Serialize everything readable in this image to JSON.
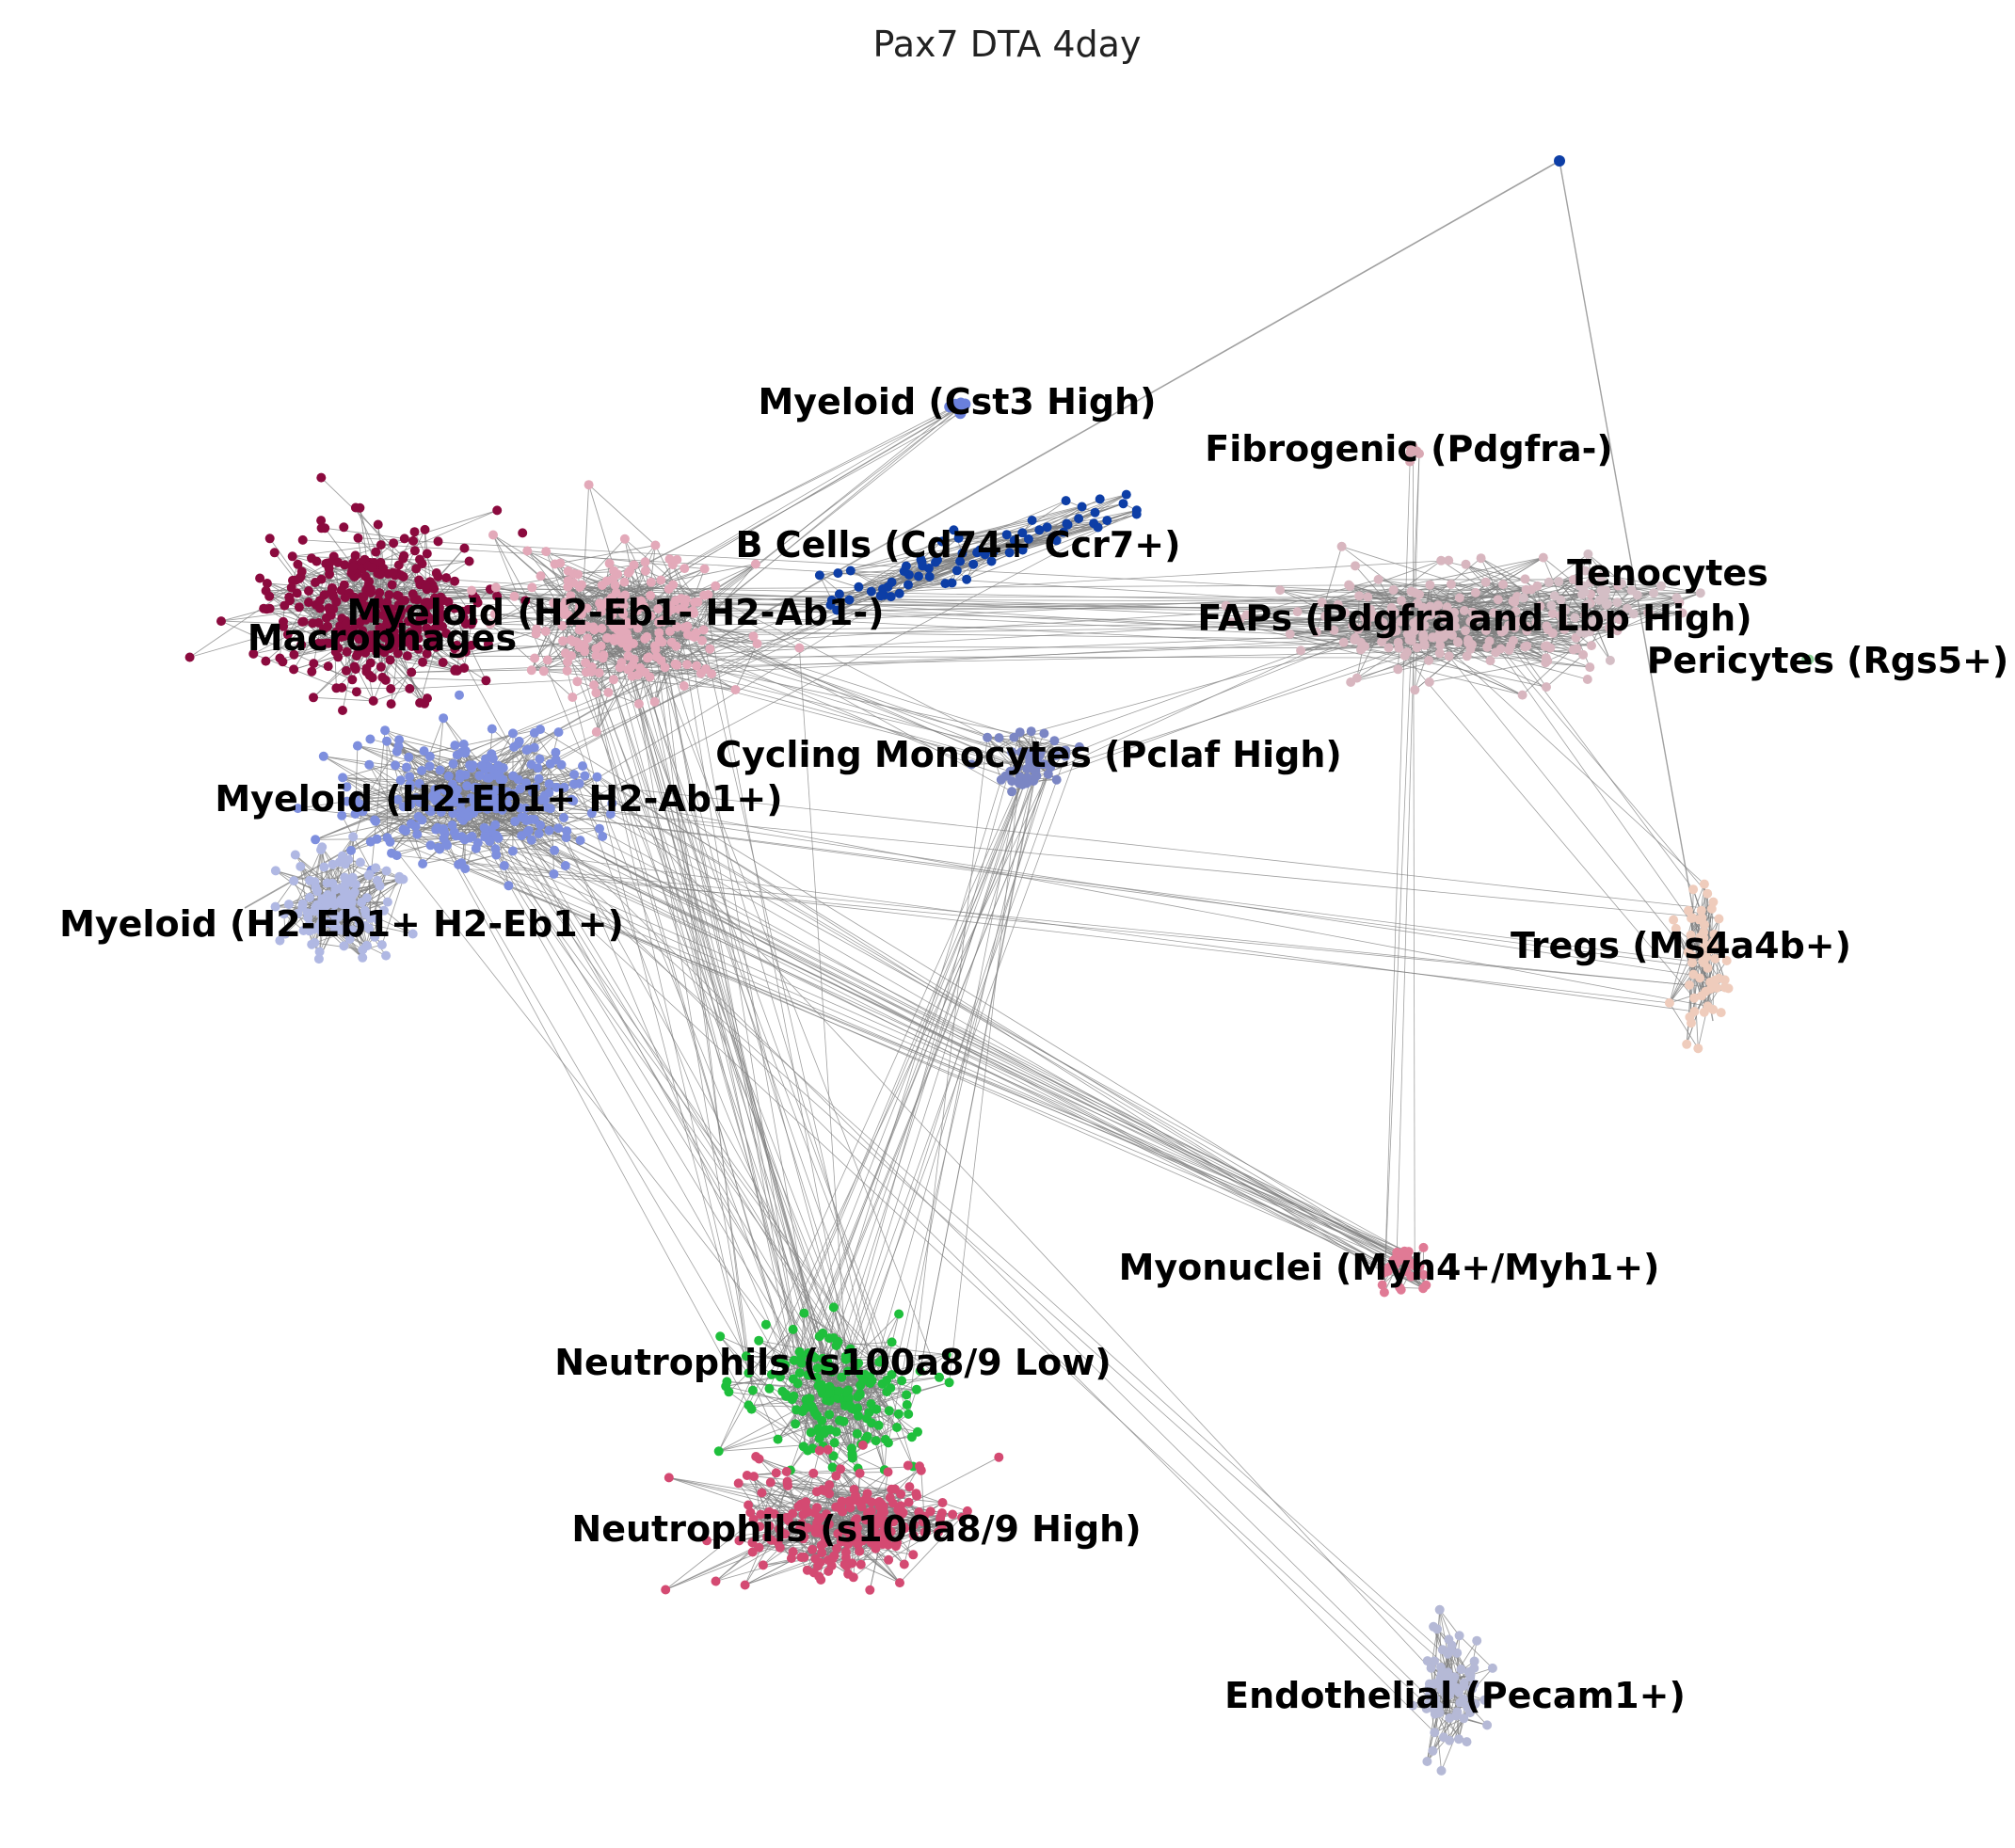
{
  "title": "Pax7 DTA 4day",
  "clusters": [
    {
      "key": "macrophages",
      "label": "Macrophages",
      "color": "#8b0a3e"
    },
    {
      "key": "myeloid_h2neg",
      "label": "Myeloid (H2-Eb1- H2-Ab1-)",
      "color": "#e3a9b9"
    },
    {
      "key": "myeloid_h2pos",
      "label": "Myeloid (H2-Eb1+ H2-Ab1+)",
      "color": "#7e8fde"
    },
    {
      "key": "myeloid_h2eb1",
      "label": "Myeloid (H2-Eb1+ H2-Eb1+)",
      "color": "#b0b8e3"
    },
    {
      "key": "myeloid_cst3",
      "label": "Myeloid (Cst3 High)",
      "color": "#6a80dc"
    },
    {
      "key": "bcells",
      "label": "B Cells (Cd74+ Ccr7+)",
      "color": "#0d3ea6"
    },
    {
      "key": "cycling",
      "label": "Cycling Monocytes (Pclaf High)",
      "color": "#7b86c4"
    },
    {
      "key": "fibrogenic",
      "label": "Fibrogenic (Pdgfra-)",
      "color": "#d9a8b3"
    },
    {
      "key": "faps",
      "label": "FAPs (Pdgfra and Lbp High)",
      "color": "#d8b6bf"
    },
    {
      "key": "tenocytes",
      "label": "Tenocytes",
      "color": "#d4bec5"
    },
    {
      "key": "pericytes",
      "label": "Pericytes (Rgs5+)",
      "color": "#8fd39a"
    },
    {
      "key": "tregs",
      "label": "Tregs (Ms4a4b+)",
      "color": "#efccbc"
    },
    {
      "key": "myonuclei",
      "label": "Myonuclei (Myh4+/Myh1+)",
      "color": "#e07a95"
    },
    {
      "key": "neut_low",
      "label": "Neutrophils (s100a8/9 Low)",
      "color": "#1fbf3c"
    },
    {
      "key": "neut_high",
      "label": "Neutrophils (s100a8/9 High)",
      "color": "#d44a72"
    },
    {
      "key": "endothelial",
      "label": "Endothelial (Pecam1+)",
      "color": "#b5b9d6"
    }
  ],
  "edge_color": "#808080"
}
